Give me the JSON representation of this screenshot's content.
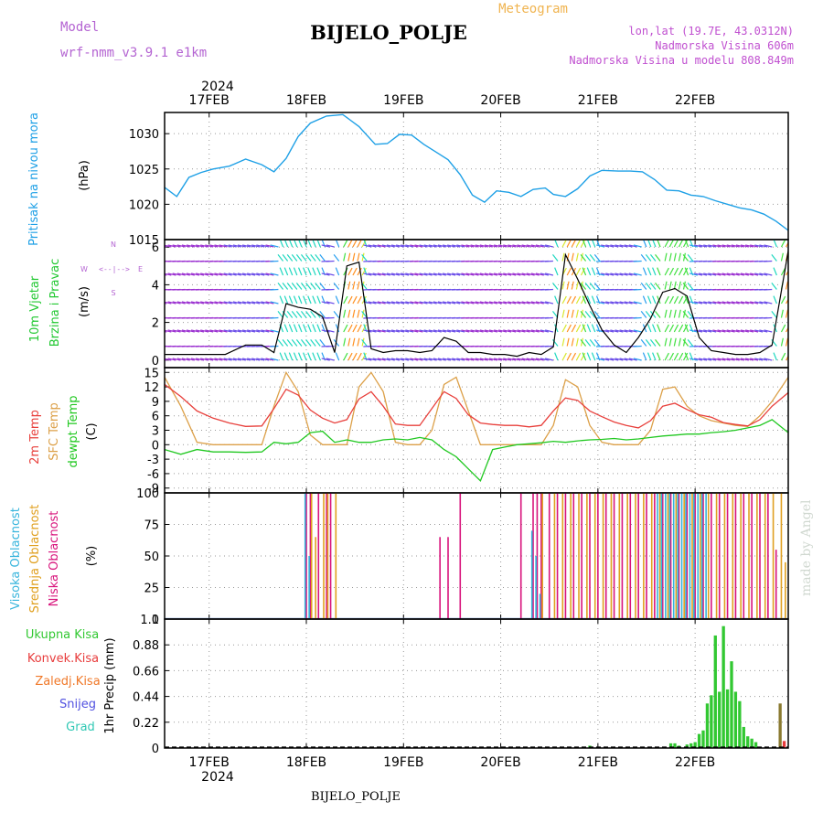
{
  "header": {
    "model_label": "Model",
    "model_name": "wrf-nmm_v3.9.1  e1km",
    "title": "BIJELO_POLJE",
    "subtitle": "Meteogram",
    "lonlat": "lon,lat (19.7E, 43.0312N)",
    "elevation": "Nadmorska Visina 606m",
    "model_elevation": "Nadmorska Visina u modelu 808.849m",
    "footer_station": "BIJELO_POLJE",
    "watermark": "made by Angel"
  },
  "colors": {
    "pressure": "#1ea0e6",
    "temp2m": "#e8403c",
    "sfc_temp": "#dca048",
    "dewpoint": "#20c820",
    "cloud_high": "#36b4dc",
    "cloud_mid": "#e0a020",
    "cloud_low": "#d8147c",
    "precip_total": "#32c832",
    "precip_conv": "#e83c3c",
    "precip_frz": "#f07828",
    "precip_snow": "#5050e0",
    "precip_hail": "#30c8b4",
    "model_label": "#b464d2",
    "station_info": "#c050d0",
    "subtitle": "#f0b450"
  },
  "time_axis": {
    "year": "2024",
    "days": [
      "17FEB",
      "18FEB",
      "19FEB",
      "20FEB",
      "21FEB",
      "22FEB"
    ]
  },
  "panels": {
    "pressure": {
      "title": "Pritisak na nivou mora",
      "unit": "(hPa)",
      "ticks": [
        "1015",
        "1020",
        "1025",
        "1030"
      ]
    },
    "wind": {
      "title1": "10m Vjetar",
      "title2": "Brzina i Pravac",
      "unit": "(m/s)",
      "ticks": [
        "0",
        "2",
        "4",
        "6"
      ],
      "compass_w": "W",
      "compass_e": "E",
      "compass_n": "N",
      "compass_s": "S",
      "compass_arrow": "<--|-->"
    },
    "temperature": {
      "title1": "2m Temp",
      "title2": "SFC Temp",
      "title3": "dewpt Temp",
      "unit": "(C)",
      "ticks": [
        "-9",
        "-6",
        "-3",
        "0",
        "3",
        "6",
        "9",
        "12",
        "15"
      ]
    },
    "clouds": {
      "title1": "Visoka Oblacnost",
      "title2": "Srednja Oblacnost",
      "title3": "Niska Oblacnost",
      "unit": "(%)",
      "ticks": [
        "0",
        "25",
        "50",
        "75",
        "100"
      ]
    },
    "precip": {
      "title": "1hr Precip (mm)",
      "ticks": [
        "0",
        "0.22",
        "0.44",
        "0.66",
        "0.88",
        "1.1"
      ],
      "legend": [
        "Ukupna Kisa",
        "Konvek.Kisa",
        "Zaledj.Kisa",
        "Snijeg",
        "Grad"
      ]
    }
  },
  "chart_data": [
    {
      "type": "line",
      "panel": "pressure",
      "ylabel": "(hPa)",
      "ylim": [
        1015,
        1033
      ],
      "x_unit": "hours from 17FEB 00:00 (axis labels are dates)",
      "xlim": [
        -11,
        143
      ],
      "grid": true,
      "series": [
        {
          "x": [
            -11,
            -8,
            -5,
            -2,
            1,
            5,
            9,
            13,
            16,
            19,
            22,
            25,
            29,
            33,
            37,
            41,
            44,
            47,
            50,
            53,
            56,
            59,
            62,
            65,
            68,
            71,
            74,
            77,
            80,
            83,
            85,
            88,
            91,
            94,
            97,
            101,
            104,
            107,
            110,
            113,
            116,
            119,
            122,
            125,
            128,
            131,
            134,
            137,
            140,
            143
          ],
          "values": [
            1022.4,
            1021.1,
            1023.8,
            1024.5,
            1025.0,
            1025.4,
            1026.4,
            1025.6,
            1024.6,
            1026.5,
            1029.6,
            1031.5,
            1032.5,
            1032.7,
            1031.0,
            1028.5,
            1028.6,
            1029.9,
            1029.8,
            1028.5,
            1027.4,
            1026.3,
            1024.2,
            1021.3,
            1020.3,
            1021.9,
            1021.7,
            1021.1,
            1022.1,
            1022.3,
            1021.4,
            1021.1,
            1022.2,
            1024.0,
            1024.8,
            1024.7,
            1024.7,
            1024.6,
            1023.5,
            1022.0,
            1021.9,
            1021.3,
            1021.1,
            1020.5,
            1020.0,
            1019.5,
            1019.2,
            1018.6,
            1017.6,
            1016.3
          ]
        }
      ]
    },
    {
      "type": "line",
      "panel": "wind",
      "ylabel": "(m/s)",
      "ylim": [
        -0.4,
        6.4
      ],
      "x_unit": "hours from 17FEB 00:00 (axis labels are dates)",
      "xlim": [
        -11,
        143
      ],
      "grid": true,
      "series": [
        {
          "x": [
            -11,
            -6,
            -1,
            4,
            9,
            13,
            16,
            19,
            22,
            25,
            28,
            31,
            34,
            37,
            40,
            43,
            46,
            49,
            52,
            55,
            58,
            61,
            64,
            67,
            70,
            73,
            76,
            79,
            82,
            85,
            88,
            91,
            94,
            97,
            100,
            103,
            106,
            109,
            112,
            115,
            118,
            121,
            124,
            127,
            130,
            133,
            136,
            139,
            143
          ],
          "values": [
            0.3,
            0.3,
            0.3,
            0.3,
            0.8,
            0.8,
            0.4,
            3.0,
            2.8,
            2.7,
            2.3,
            0.4,
            5.0,
            5.2,
            0.6,
            0.4,
            0.5,
            0.5,
            0.4,
            0.5,
            1.2,
            1.0,
            0.4,
            0.4,
            0.3,
            0.3,
            0.2,
            0.4,
            0.3,
            0.7,
            5.6,
            4.3,
            2.9,
            1.6,
            0.8,
            0.4,
            1.2,
            2.2,
            3.6,
            3.8,
            3.4,
            1.2,
            0.5,
            0.4,
            0.3,
            0.3,
            0.4,
            0.8,
            5.8
          ]
        }
      ]
    },
    {
      "type": "line",
      "panel": "temperature",
      "ylabel": "(C)",
      "ylim": [
        -10,
        16
      ],
      "x_unit": "hours from 17FEB 00:00 (axis labels are dates)",
      "xlim": [
        -11,
        143
      ],
      "grid": true,
      "series": [
        {
          "name": "2m Temp",
          "x": [
            -11,
            -7,
            -3,
            1,
            5,
            9,
            13,
            16,
            19,
            22,
            25,
            28,
            31,
            34,
            37,
            40,
            43,
            46,
            49,
            52,
            55,
            58,
            61,
            64,
            67,
            70,
            73,
            76,
            79,
            82,
            85,
            88,
            91,
            94,
            97,
            100,
            103,
            106,
            109,
            112,
            115,
            118,
            121,
            124,
            127,
            130,
            133,
            136,
            139,
            143
          ],
          "values": [
            12.5,
            10.0,
            7.0,
            5.5,
            4.5,
            3.8,
            3.9,
            7.5,
            11.5,
            10.3,
            7.2,
            5.5,
            4.5,
            5.2,
            9.5,
            11.0,
            8.0,
            4.3,
            4.0,
            4.0,
            7.5,
            11.0,
            9.6,
            6.2,
            4.5,
            4.2,
            4.0,
            4.0,
            3.7,
            4.0,
            7.0,
            9.7,
            9.2,
            7.0,
            5.8,
            4.7,
            4.0,
            3.5,
            5.0,
            8.0,
            8.6,
            7.3,
            6.2,
            5.7,
            4.6,
            4.2,
            3.9,
            5.2,
            8.0,
            10.8
          ]
        },
        {
          "name": "SFC Temp",
          "x": [
            -11,
            -7,
            -3,
            1,
            5,
            9,
            13,
            16,
            19,
            22,
            25,
            28,
            31,
            34,
            37,
            40,
            43,
            46,
            49,
            52,
            55,
            58,
            61,
            64,
            67,
            70,
            73,
            76,
            79,
            82,
            85,
            88,
            91,
            94,
            97,
            100,
            103,
            106,
            109,
            112,
            115,
            118,
            121,
            124,
            127,
            130,
            133,
            136,
            139,
            143
          ],
          "values": [
            14.0,
            8.0,
            0.5,
            0.0,
            0.0,
            0.0,
            0.0,
            8.0,
            15.0,
            11.0,
            2.0,
            0.0,
            0.0,
            0.0,
            12.0,
            15.0,
            11.0,
            0.5,
            0.0,
            0.0,
            3.0,
            12.5,
            14.0,
            7.0,
            0.0,
            0.0,
            0.0,
            0.0,
            0.0,
            0.0,
            4.0,
            13.5,
            12.0,
            4.0,
            0.5,
            0.0,
            0.0,
            0.0,
            3.0,
            11.5,
            12.0,
            8.0,
            6.0,
            5.0,
            4.5,
            4.0,
            3.8,
            6.0,
            9.0,
            14.0
          ]
        },
        {
          "name": "dewpt Temp",
          "x": [
            -11,
            -7,
            -3,
            1,
            5,
            9,
            13,
            16,
            19,
            22,
            25,
            28,
            31,
            34,
            37,
            40,
            43,
            46,
            49,
            52,
            55,
            58,
            61,
            64,
            67,
            70,
            73,
            76,
            79,
            82,
            85,
            88,
            91,
            94,
            97,
            100,
            103,
            106,
            109,
            112,
            115,
            118,
            121,
            124,
            127,
            130,
            133,
            136,
            139,
            143
          ],
          "values": [
            -1.0,
            -2.0,
            -1.0,
            -1.5,
            -1.5,
            -1.6,
            -1.5,
            0.5,
            0.2,
            0.5,
            2.5,
            2.8,
            0.5,
            1.0,
            0.5,
            0.5,
            1.0,
            1.2,
            1.0,
            1.5,
            1.0,
            -1.0,
            -2.5,
            -5.0,
            -7.5,
            -1.0,
            -0.5,
            0.0,
            0.2,
            0.4,
            0.7,
            0.5,
            0.8,
            1.0,
            1.1,
            1.3,
            1.0,
            1.2,
            1.5,
            1.8,
            2.0,
            2.2,
            2.2,
            2.5,
            2.7,
            3.0,
            3.5,
            4.0,
            5.2,
            2.5
          ]
        }
      ]
    },
    {
      "type": "bar",
      "panel": "clouds",
      "ylabel": "(%)",
      "ylim": [
        0,
        100
      ],
      "x_unit": "hours from 17FEB 00:00 (axis labels are dates)",
      "xlim": [
        -11,
        143
      ],
      "series": [
        {
          "name": "Niska Oblacnost",
          "x": [
            24,
            25,
            27,
            29,
            30,
            57,
            59,
            62,
            77,
            80,
            81,
            82,
            84,
            86,
            88,
            90,
            92,
            94,
            96,
            98,
            100,
            102,
            104,
            106,
            108,
            110,
            112,
            114,
            116,
            118,
            120,
            122,
            124,
            126,
            128,
            130,
            132,
            134,
            136,
            138,
            140
          ],
          "values": [
            100,
            100,
            100,
            100,
            100,
            65,
            65,
            100,
            100,
            100,
            100,
            100,
            100,
            100,
            100,
            100,
            100,
            100,
            100,
            100,
            100,
            100,
            100,
            100,
            100,
            100,
            100,
            100,
            100,
            100,
            100,
            100,
            100,
            100,
            100,
            100,
            100,
            100,
            100,
            100,
            55
          ]
        },
        {
          "name": "Srednja Oblacnost",
          "x": [
            25,
            26,
            28,
            29,
            31,
            82,
            85,
            87,
            89,
            91,
            93,
            95,
            97,
            99,
            101,
            103,
            105,
            107,
            109,
            111,
            113,
            115,
            117,
            119,
            121,
            123,
            125,
            127,
            129,
            131,
            133,
            135,
            137,
            139,
            141,
            142
          ],
          "values": [
            100,
            65,
            100,
            100,
            100,
            100,
            100,
            100,
            100,
            100,
            100,
            100,
            100,
            100,
            100,
            100,
            100,
            100,
            100,
            100,
            100,
            100,
            100,
            100,
            100,
            100,
            100,
            100,
            100,
            100,
            100,
            100,
            100,
            100,
            100,
            45
          ]
        },
        {
          "name": "Visoka Oblacnost",
          "x": [
            24,
            25,
            80,
            81,
            82,
            111,
            112,
            113,
            114,
            115,
            116,
            117,
            118,
            119,
            120,
            121,
            122,
            123
          ],
          "values": [
            100,
            50,
            70,
            50,
            20,
            100,
            100,
            100,
            100,
            100,
            100,
            100,
            100,
            100,
            100,
            100,
            100,
            100
          ]
        }
      ]
    },
    {
      "type": "bar",
      "panel": "precip",
      "ylabel": "1hr Precip (mm)",
      "ylim": [
        0,
        1.1
      ],
      "x_unit": "hours from 17FEB 00:00 (axis labels are dates)",
      "xlim": [
        -11,
        143
      ],
      "grid": true,
      "series": [
        {
          "name": "Ukupna Kisa",
          "x": [
            94,
            114,
            115,
            116,
            118,
            119,
            120,
            121,
            122,
            123,
            124,
            125,
            126,
            127,
            128,
            129,
            130,
            131,
            132,
            133,
            134,
            135
          ],
          "values": [
            0.02,
            0.04,
            0.04,
            0.02,
            0.03,
            0.04,
            0.05,
            0.12,
            0.15,
            0.38,
            0.45,
            0.96,
            0.48,
            1.04,
            0.5,
            0.74,
            0.48,
            0.4,
            0.18,
            0.1,
            0.08,
            0.05
          ]
        },
        {
          "name": "Zaledj.Kisa",
          "x": [
            141
          ],
          "values": [
            0.38
          ]
        },
        {
          "name": "Konvek.Kisa",
          "x": [
            142
          ],
          "values": [
            0.06
          ]
        }
      ]
    }
  ]
}
